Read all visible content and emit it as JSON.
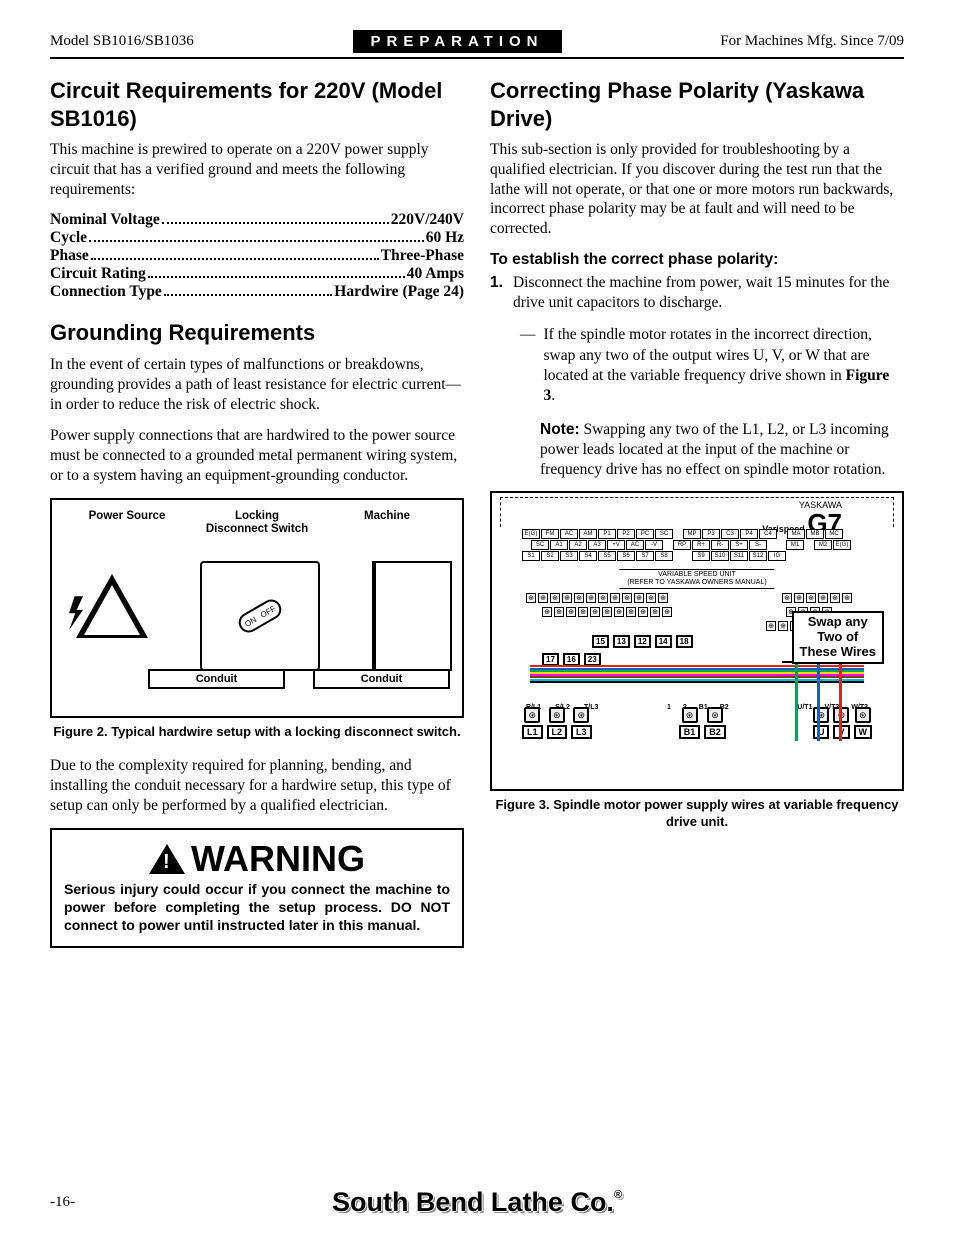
{
  "header": {
    "left": "Model SB1016/SB1036",
    "center": "PREPARATION",
    "right": "For Machines Mfg. Since 7/09"
  },
  "left_col": {
    "h1": "Circuit Requirements for 220V (Model SB1016)",
    "p1": "This machine is prewired to operate on a 220V power supply circuit that has a verified ground and meets the following requirements:",
    "specs": [
      {
        "label": "Nominal Voltage",
        "value": "220V/240V"
      },
      {
        "label": "Cycle",
        "value": "60 Hz"
      },
      {
        "label": "Phase",
        "value": "Three-Phase"
      },
      {
        "label": "Circuit Rating",
        "value": "40 Amps"
      },
      {
        "label": "Connection Type",
        "value": "Hardwire (Page 24)"
      }
    ],
    "h2": "Grounding Requirements",
    "p2": "In the event of certain types of malfunctions or breakdowns, grounding provides a path of least resistance for electric current—in order to reduce the risk of electric shock.",
    "p3": "Power supply connections that are hardwired to the power source must be connected to a grounded metal permanent wiring system, or to a system having an equipment-grounding conductor.",
    "fig2": {
      "power_source": "Power Source",
      "locking": "Locking\nDisconnect Switch",
      "machine": "Machine",
      "conduit": "Conduit",
      "on": "ON",
      "off": "OFF"
    },
    "fig2_caption": "Figure 2. Typical hardwire setup with a locking disconnect switch.",
    "p4": "Due to the complexity required for planning, bending, and installing the conduit necessary for a hardwire setup, this type of setup can only be performed by a qualified electrician.",
    "warning_head": "WARNING",
    "warning_body": "Serious injury could occur if you connect the machine to power before completing the setup process. DO NOT connect to power until instructed later in this manual."
  },
  "right_col": {
    "h1": "Correcting Phase Polarity (Yaskawa Drive)",
    "p1": "This sub-section is only provided for troubleshooting by a qualified electrician. If you discover during the test run that the lathe will not operate, or that one or more motors run backwards, incorrect phase polarity may be at fault and will need to be corrected.",
    "sub": "To establish the correct phase polarity:",
    "step1": "Disconnect the machine from power, wait 15 minutes for the drive unit capacitors to discharge.",
    "dash": "If the spindle motor rotates in the incorrect direction, swap any two of the output wires U, V, or W that are located at the variable frequency drive shown in ",
    "dash_bold": "Figure 3",
    "note_label": "Note:",
    "note_body": " Swapping any two of the L1, L2, or L3 incoming power leads located at the input of the machine or frequency drive has no effect on spindle motor rotation.",
    "fig3": {
      "yaskawa": "YASKAWA",
      "varispeed": "Varispeed",
      "g7": "G7",
      "vsu1": "VARIABLE SPEED UNIT",
      "vsu2": "(REFER TO YASKAWA OWNERS MANUAL)",
      "swap": "Swap any Two of These Wires",
      "term_row_a": [
        "E(G)",
        "FM",
        "AC",
        "AM",
        "P1",
        "P2",
        "PC",
        "SC",
        "",
        "MP",
        "P3",
        "C3",
        "P4",
        "C4",
        "",
        "MA",
        "MB",
        "MC"
      ],
      "term_row_b": [
        "",
        "SC",
        "A1",
        "A2",
        "A3",
        "+V",
        "AC",
        "-V",
        "",
        "RP",
        "R+",
        "R-",
        "S+",
        "S-",
        "",
        "",
        "M1",
        "",
        "M2",
        "E(G)"
      ],
      "term_row_c": [
        "S1",
        "S2",
        "S3",
        "S4",
        "S5",
        "S6",
        "S7",
        "S8",
        "",
        "",
        "S9",
        "S10",
        "S11",
        "S12",
        "IG",
        "",
        "",
        "",
        "",
        ""
      ],
      "tagsA": [
        "17"
      ],
      "tagsB": [
        "15",
        "13"
      ],
      "tagsC": [
        "12",
        "14"
      ],
      "tagsD": [
        "18"
      ],
      "tagsE": [
        "16"
      ],
      "tagsF": [
        "23"
      ],
      "bt_top_left": [
        "R/L1",
        "S/L2",
        "T/L3"
      ],
      "bt_top_mid": [
        "1",
        "2",
        "B1",
        "B2"
      ],
      "bt_top_right": [
        "U/T1",
        "V/T2",
        "W/T3"
      ],
      "bt_left": [
        "L1",
        "L2",
        "L3"
      ],
      "bt_mid": [
        "B1",
        "B2"
      ],
      "bt_right": [
        "U",
        "V",
        "W"
      ],
      "wire_colors": [
        "#d9261c",
        "#1560bd",
        "#00a651",
        "#ffd800",
        "#ff00ff",
        "#7f3f00",
        "#00bcd4",
        "#000000"
      ]
    },
    "fig3_caption": "Figure 3. Spindle motor power supply wires at variable frequency drive unit."
  },
  "footer": {
    "page": "-16-",
    "brand": "South Bend Lathe Co."
  }
}
